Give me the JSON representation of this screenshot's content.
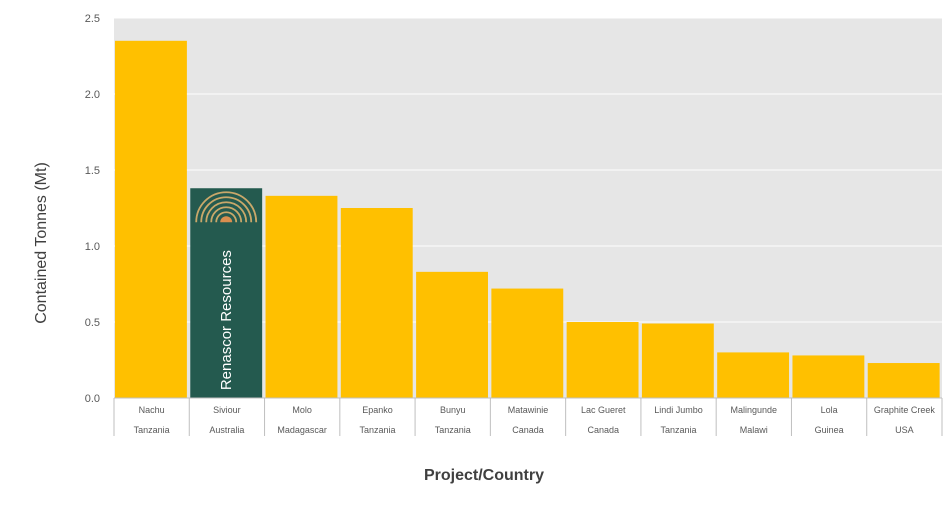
{
  "chart_data": {
    "type": "bar",
    "title": "",
    "xlabel": "Project/Country",
    "ylabel": "Contained Tonnes (Mt)",
    "ylim": [
      0,
      2.5
    ],
    "yticks": [
      "0.0",
      "0.5",
      "1.0",
      "1.5",
      "2.0",
      "2.5"
    ],
    "categories": [
      {
        "project": "Nachu",
        "country": "Tanzania"
      },
      {
        "project": "Siviour",
        "country": "Australia"
      },
      {
        "project": "Molo",
        "country": "Madagascar"
      },
      {
        "project": "Epanko",
        "country": "Tanzania"
      },
      {
        "project": "Bunyu",
        "country": "Tanzania"
      },
      {
        "project": "Matawinie",
        "country": "Canada"
      },
      {
        "project": "Lac Gueret",
        "country": "Canada"
      },
      {
        "project": "Lindi Jumbo",
        "country": "Tanzania"
      },
      {
        "project": "Malingunde",
        "country": "Malawi"
      },
      {
        "project": "Lola",
        "country": "Guinea"
      },
      {
        "project": "Graphite Creek",
        "country": "USA"
      }
    ],
    "values": [
      2.35,
      1.38,
      1.33,
      1.25,
      0.83,
      0.72,
      0.5,
      0.49,
      0.3,
      0.28,
      0.23
    ],
    "highlight_index": 1,
    "grid": true,
    "legend": "none",
    "colors": {
      "bar": "#FFC000",
      "highlight_bar": "#245A4F",
      "plot_background": "#E6E6E6",
      "gridline": "#FFFFFF",
      "logo_arc": "#C9A86A",
      "logo_sun": "#D98E4F"
    }
  },
  "highlight_label": "Renascor Resources"
}
